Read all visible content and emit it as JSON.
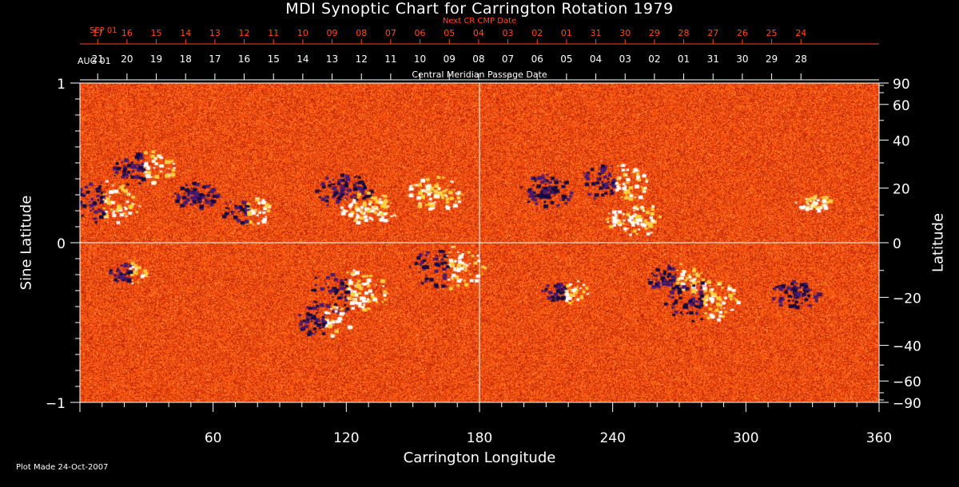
{
  "chart_data": {
    "type": "heatmap",
    "title": "MDI Synoptic Chart for Carrington Rotation 1979",
    "xlabel": "Carrington Longitude",
    "ylabel_left": "Sine Latitude",
    "ylabel_right": "Latitude",
    "xlim": [
      0,
      360
    ],
    "ylim": [
      -1,
      1
    ],
    "x_ticks": [
      60,
      120,
      180,
      240,
      300,
      360
    ],
    "y_ticks_left": [
      {
        "value": 1,
        "label": "1"
      },
      {
        "value": 0,
        "label": "0"
      },
      {
        "value": -1,
        "label": "−1"
      }
    ],
    "y_ticks_right_degrees": [
      90,
      60,
      40,
      20,
      0,
      -20,
      -40,
      -60,
      -90
    ],
    "y_ticks_right_labels": [
      "90",
      "60",
      "40",
      "20",
      "0",
      "−20",
      "−40",
      "−60",
      "−90"
    ],
    "top_axis_current": {
      "label": "AUG 01",
      "dates": [
        "21",
        "20",
        "19",
        "18",
        "17",
        "16",
        "15",
        "14",
        "13",
        "12",
        "11",
        "10",
        "09",
        "08",
        "07",
        "06",
        "05",
        "04",
        "03",
        "02",
        "01",
        "31",
        "30",
        "29",
        "28"
      ]
    },
    "top_axis_next": {
      "label": "SEP 01",
      "caption": "Next CR CMP Date",
      "dates": [
        "17",
        "16",
        "15",
        "14",
        "13",
        "12",
        "11",
        "10",
        "09",
        "08",
        "07",
        "06",
        "05",
        "04",
        "03",
        "02",
        "01",
        "31",
        "30",
        "29",
        "28",
        "27",
        "26",
        "25",
        "24"
      ]
    },
    "cmp_caption": "Central Meridian Passage Date",
    "active_regions": [
      {
        "lon": 10,
        "sinlat": 0.26,
        "polarity": "mixed",
        "size": 1.3
      },
      {
        "lon": 28,
        "sinlat": 0.47,
        "polarity": "mixed",
        "size": 1.1
      },
      {
        "lon": 52,
        "sinlat": 0.3,
        "polarity": "negative",
        "size": 0.8
      },
      {
        "lon": 75,
        "sinlat": 0.2,
        "polarity": "mixed",
        "size": 0.9
      },
      {
        "lon": 118,
        "sinlat": 0.33,
        "polarity": "negative",
        "size": 1.0
      },
      {
        "lon": 130,
        "sinlat": 0.22,
        "polarity": "positive",
        "size": 1.0
      },
      {
        "lon": 160,
        "sinlat": 0.32,
        "polarity": "positive",
        "size": 1.0
      },
      {
        "lon": 22,
        "sinlat": -0.18,
        "polarity": "mixed",
        "size": 0.7
      },
      {
        "lon": 120,
        "sinlat": -0.3,
        "polarity": "mixed",
        "size": 1.4
      },
      {
        "lon": 110,
        "sinlat": -0.48,
        "polarity": "mixed",
        "size": 1.0
      },
      {
        "lon": 165,
        "sinlat": -0.15,
        "polarity": "mixed",
        "size": 1.3
      },
      {
        "lon": 210,
        "sinlat": 0.33,
        "polarity": "negative",
        "size": 1.0
      },
      {
        "lon": 240,
        "sinlat": 0.38,
        "polarity": "mixed",
        "size": 1.2
      },
      {
        "lon": 250,
        "sinlat": 0.15,
        "polarity": "positive",
        "size": 1.0
      },
      {
        "lon": 268,
        "sinlat": -0.22,
        "polarity": "mixed",
        "size": 1.0
      },
      {
        "lon": 280,
        "sinlat": -0.36,
        "polarity": "mixed",
        "size": 1.3
      },
      {
        "lon": 330,
        "sinlat": 0.25,
        "polarity": "positive",
        "size": 0.6
      },
      {
        "lon": 322,
        "sinlat": -0.32,
        "polarity": "negative",
        "size": 0.9
      },
      {
        "lon": 218,
        "sinlat": -0.3,
        "polarity": "mixed",
        "size": 0.8
      }
    ]
  },
  "footer": {
    "plot_made": "Plot Made 24-Oct-2007"
  },
  "colors": {
    "background": "#000000",
    "field_base": "#ff5a10",
    "field_dark": "#c02808",
    "positive": "#ffffff",
    "positive_mid": "#ffd040",
    "negative": "#140a40",
    "negative_mid": "#4a1a70",
    "axis": "#ffffff",
    "next_cr_text": "#ff4a1a"
  }
}
